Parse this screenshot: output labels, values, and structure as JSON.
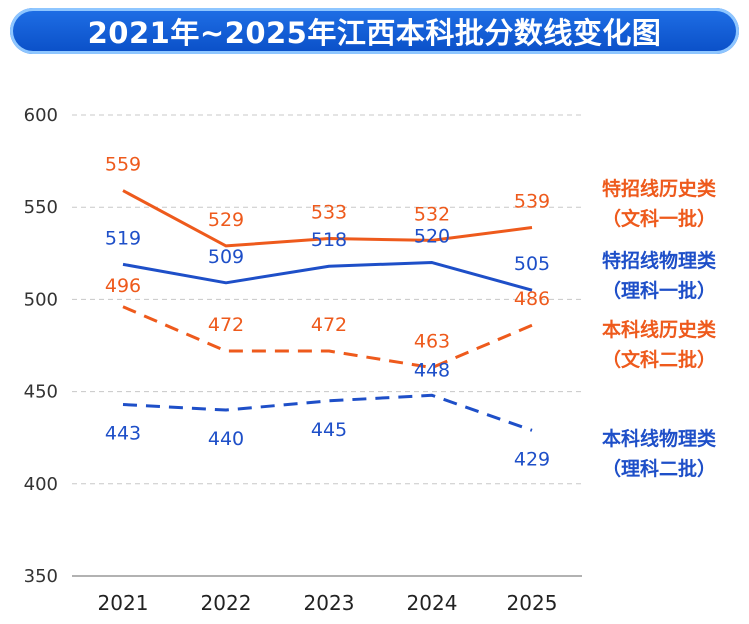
{
  "title": "2021年~2025年江西本科批分数线变化图",
  "chart_data": {
    "type": "line",
    "categories": [
      "2021",
      "2022",
      "2023",
      "2024",
      "2025"
    ],
    "ylim": [
      350,
      600
    ],
    "yticks": [
      350,
      400,
      450,
      500,
      550,
      600
    ],
    "grid": true,
    "legend_position": "right",
    "series": [
      {
        "name": "特招线历史类（文科一批）",
        "line1": "特招线历史类",
        "line2": "（文科一批）",
        "color": "#ee5a1c",
        "dash": "solid",
        "values": [
          559,
          529,
          533,
          532,
          539
        ]
      },
      {
        "name": "特招线物理类（理科一批）",
        "line1": "特招线物理类",
        "line2": "（理科一批）",
        "color": "#1e4fc8",
        "dash": "solid",
        "values": [
          519,
          509,
          518,
          520,
          505
        ]
      },
      {
        "name": "本科线历史类（文科二批）",
        "line1": "本科线历史类",
        "line2": "（文科二批）",
        "color": "#ee5a1c",
        "dash": "dashed",
        "values": [
          496,
          472,
          472,
          463,
          486
        ]
      },
      {
        "name": "本科线物理类（理科二批）",
        "line1": "本科线物理类",
        "line2": "（理科二批）",
        "color": "#1e4fc8",
        "dash": "dashed",
        "values": [
          443,
          440,
          445,
          448,
          429
        ]
      }
    ]
  }
}
